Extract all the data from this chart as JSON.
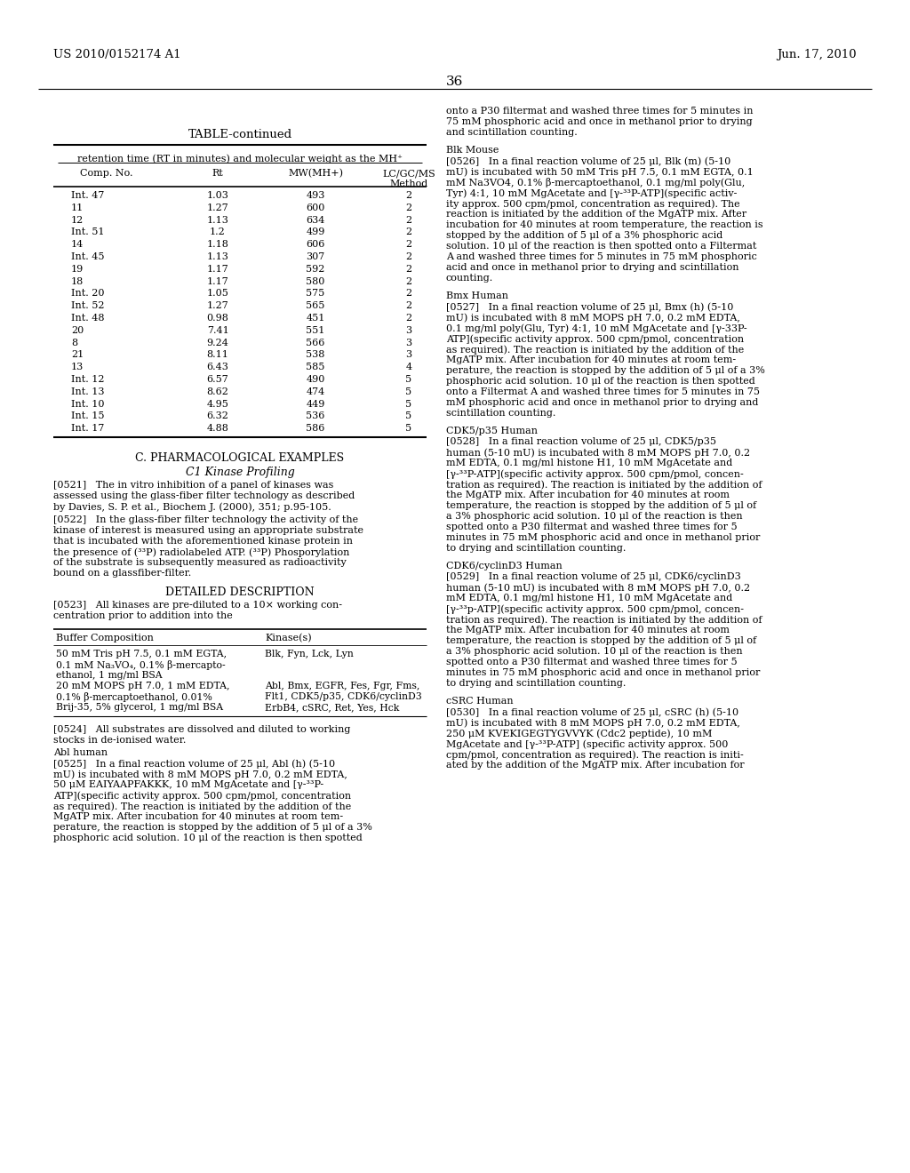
{
  "page_header_left": "US 2010/0152174 A1",
  "page_header_right": "Jun. 17, 2010",
  "page_number": "36",
  "background_color": "#ffffff",
  "table_title": "TABLE-continued",
  "table_subtitle": "retention time (RT in minutes) and molecular weight as the MH⁺",
  "table_headers": [
    "Comp. No.",
    "Rt",
    "MW(MH+)",
    "LC/GC/MS\nMethod"
  ],
  "table_data": [
    [
      "Int. 47",
      "1.03",
      "493",
      "2"
    ],
    [
      "11",
      "1.27",
      "600",
      "2"
    ],
    [
      "12",
      "1.13",
      "634",
      "2"
    ],
    [
      "Int. 51",
      "1.2",
      "499",
      "2"
    ],
    [
      "14",
      "1.18",
      "606",
      "2"
    ],
    [
      "Int. 45",
      "1.13",
      "307",
      "2"
    ],
    [
      "19",
      "1.17",
      "592",
      "2"
    ],
    [
      "18",
      "1.17",
      "580",
      "2"
    ],
    [
      "Int. 20",
      "1.05",
      "575",
      "2"
    ],
    [
      "Int. 52",
      "1.27",
      "565",
      "2"
    ],
    [
      "Int. 48",
      "0.98",
      "451",
      "2"
    ],
    [
      "20",
      "7.41",
      "551",
      "3"
    ],
    [
      "8",
      "9.24",
      "566",
      "3"
    ],
    [
      "21",
      "8.11",
      "538",
      "3"
    ],
    [
      "13",
      "6.43",
      "585",
      "4"
    ],
    [
      "Int. 12",
      "6.57",
      "490",
      "5"
    ],
    [
      "Int. 13",
      "8.62",
      "474",
      "5"
    ],
    [
      "Int. 10",
      "4.95",
      "449",
      "5"
    ],
    [
      "Int. 15",
      "6.32",
      "536",
      "5"
    ],
    [
      "Int. 17",
      "4.88",
      "586",
      "5"
    ]
  ],
  "section_c_title": "C. PHARMACOLOGICAL EXAMPLES",
  "section_c1_title": "C1 Kinase Profiling",
  "buffer_table_headers": [
    "Buffer Composition",
    "Kinase(s)"
  ],
  "buffer_table_row1_buf": "50 mM Tris pH 7.5, 0.1 mM EGTA,\n0.1 mM Na₃VO₄, 0.1% β-mercapto-\nethanol, 1 mg/ml BSA",
  "buffer_table_row1_kin": "Blk, Fyn, Lck, Lyn",
  "buffer_table_row2_buf": "20 mM MOPS pH 7.0, 1 mM EDTA,\n0.1% β-mercaptoethanol, 0.01%\nBrij-35, 5% glycerol, 1 mg/ml BSA",
  "buffer_table_row2_kin": "Abl, Bmx, EGFR, Fes, Fgr, Fms,\nFlt1, CDK5/p35, CDK6/cyclinD3\nErbB4, cSRC, Ret, Yes, Hck",
  "left_col_lines": [
    {
      "type": "section_center",
      "text": "C. PHARMACOLOGICAL EXAMPLES",
      "bold": false
    },
    {
      "type": "section_center_italic",
      "text": "C1 Kinase Profiling"
    },
    {
      "type": "blank_small"
    },
    {
      "type": "para",
      "lines": [
        "[0521]   The in vitro inhibition of a panel of kinases was",
        "assessed using the glass-fiber filter technology as described",
        "by Davies, S. P. et al., Biochem J. (2000), 351; p.95-105."
      ]
    },
    {
      "type": "blank_small"
    },
    {
      "type": "para",
      "lines": [
        "[0522]   In the glass-fiber filter technology the activity of the",
        "kinase of interest is measured using an appropriate substrate",
        "that is incubated with the aforementioned kinase protein in",
        "the presence of (³³P) radiolabeled ATP. (³³P) Phosporylation",
        "of the substrate is subsequently measured as radioactivity",
        "bound on a glassfiber-filter."
      ]
    },
    {
      "type": "blank_small"
    },
    {
      "type": "section_center",
      "text": "DETAILED DESCRIPTION",
      "bold": false
    },
    {
      "type": "blank_small"
    },
    {
      "type": "para",
      "lines": [
        "[0523]   All kinases are pre-diluted to a 10× working con-",
        "centration prior to addition into the"
      ]
    }
  ],
  "left_col_bottom_lines": [
    {
      "type": "para",
      "lines": [
        "[0524]   All substrates are dissolved and diluted to working",
        "stocks in de-ionised water."
      ]
    },
    {
      "type": "subhead",
      "text": "Abl human"
    },
    {
      "type": "para",
      "lines": [
        "[0525]   In a final reaction volume of 25 μl, Abl (h) (5-10",
        "mU) is incubated with 8 mM MOPS pH 7.0, 0.2 mM EDTA,",
        "50 μM EAIYAAPFAKKK, 10 mM MgAcetate and [γ-³³P-",
        "ATP](specific activity approx. 500 cpm/pmol, concentration",
        "as required). The reaction is initiated by the addition of the",
        "MgATP mix. After incubation for 40 minutes at room tem-",
        "perature, the reaction is stopped by the addition of 5 μl of a 3%",
        "phosphoric acid solution. 10 μl of the reaction is then spotted"
      ]
    }
  ],
  "right_col_lines": [
    {
      "type": "para",
      "lines": [
        "onto a P30 filtermat and washed three times for 5 minutes in",
        "75 mM phosphoric acid and once in methanol prior to drying",
        "and scintillation counting."
      ]
    },
    {
      "type": "blank_small"
    },
    {
      "type": "subhead",
      "text": "Blk Mouse"
    },
    {
      "type": "para",
      "lines": [
        "[0526]   In a final reaction volume of 25 μl, Blk (m) (5-10",
        "mU) is incubated with 50 mM Tris pH 7.5, 0.1 mM EGTA, 0.1",
        "mM Na3VO4, 0.1% β-mercaptoethanol, 0.1 mg/ml poly(Glu,",
        "Tyr) 4:1, 10 mM MgAcetate and [γ-³³P-ATP](specific activ-",
        "ity approx. 500 cpm/pmol, concentration as required). The",
        "reaction is initiated by the addition of the MgATP mix. After",
        "incubation for 40 minutes at room temperature, the reaction is",
        "stopped by the addition of 5 μl of a 3% phosphoric acid",
        "solution. 10 μl of the reaction is then spotted onto a Filtermat",
        "A and washed three times for 5 minutes in 75 mM phosphoric",
        "acid and once in methanol prior to drying and scintillation",
        "counting."
      ]
    },
    {
      "type": "blank_small"
    },
    {
      "type": "subhead",
      "text": "Bmx Human"
    },
    {
      "type": "para",
      "lines": [
        "[0527]   In a final reaction volume of 25 μl, Bmx (h) (5-10",
        "mU) is incubated with 8 mM MOPS pH 7.0, 0.2 mM EDTA,",
        "0.1 mg/ml poly(Glu, Tyr) 4:1, 10 mM MgAcetate and [γ-33P-",
        "ATP](specific activity approx. 500 cpm/pmol, concentration",
        "as required). The reaction is initiated by the addition of the",
        "MgATP mix. After incubation for 40 minutes at room tem-",
        "perature, the reaction is stopped by the addition of 5 μl of a 3%",
        "phosphoric acid solution. 10 μl of the reaction is then spotted",
        "onto a Filtermat A and washed three times for 5 minutes in 75",
        "mM phosphoric acid and once in methanol prior to drying and",
        "scintillation counting."
      ]
    },
    {
      "type": "blank_small"
    },
    {
      "type": "subhead",
      "text": "CDK5/p35 Human"
    },
    {
      "type": "para",
      "lines": [
        "[0528]   In a final reaction volume of 25 μl, CDK5/p35",
        "human (5-10 mU) is incubated with 8 mM MOPS pH 7.0, 0.2",
        "mM EDTA, 0.1 mg/ml histone H1, 10 mM MgAcetate and",
        "[γ-³³P-ATP](specific activity approx. 500 cpm/pmol, concen-",
        "tration as required). The reaction is initiated by the addition of",
        "the MgATP mix. After incubation for 40 minutes at room",
        "temperature, the reaction is stopped by the addition of 5 μl of",
        "a 3% phosphoric acid solution. 10 μl of the reaction is then",
        "spotted onto a P30 filtermat and washed three times for 5",
        "minutes in 75 mM phosphoric acid and once in methanol prior",
        "to drying and scintillation counting."
      ]
    },
    {
      "type": "blank_small"
    },
    {
      "type": "subhead",
      "text": "CDK6/cyclinD3 Human"
    },
    {
      "type": "para",
      "lines": [
        "[0529]   In a final reaction volume of 25 μl, CDK6/cyclinD3",
        "human (5-10 mU) is incubated with 8 mM MOPS pH 7.0, 0.2",
        "mM EDTA, 0.1 mg/ml histone H1, 10 mM MgAcetate and",
        "[γ-³³p-ATP](specific activity approx. 500 cpm/pmol, concen-",
        "tration as required). The reaction is initiated by the addition of",
        "the MgATP mix. After incubation for 40 minutes at room",
        "temperature, the reaction is stopped by the addition of 5 μl of",
        "a 3% phosphoric acid solution. 10 μl of the reaction is then",
        "spotted onto a P30 filtermat and washed three times for 5",
        "minutes in 75 mM phosphoric acid and once in methanol prior",
        "to drying and scintillation counting."
      ]
    },
    {
      "type": "blank_small"
    },
    {
      "type": "subhead",
      "text": "cSRC Human"
    },
    {
      "type": "para",
      "lines": [
        "[0530]   In a final reaction volume of 25 μl, cSRC (h) (5-10",
        "mU) is incubated with 8 mM MOPS pH 7.0, 0.2 mM EDTA,",
        "250 μM KVEKIGEGTYGVVYK (Cdc2 peptide), 10 mM",
        "MgAcetate and [γ-³³P-ATP] (specific activity approx. 500",
        "cpm/pmol, concentration as required). The reaction is initi-",
        "ated by the addition of the MgATP mix. After incubation for"
      ]
    }
  ]
}
